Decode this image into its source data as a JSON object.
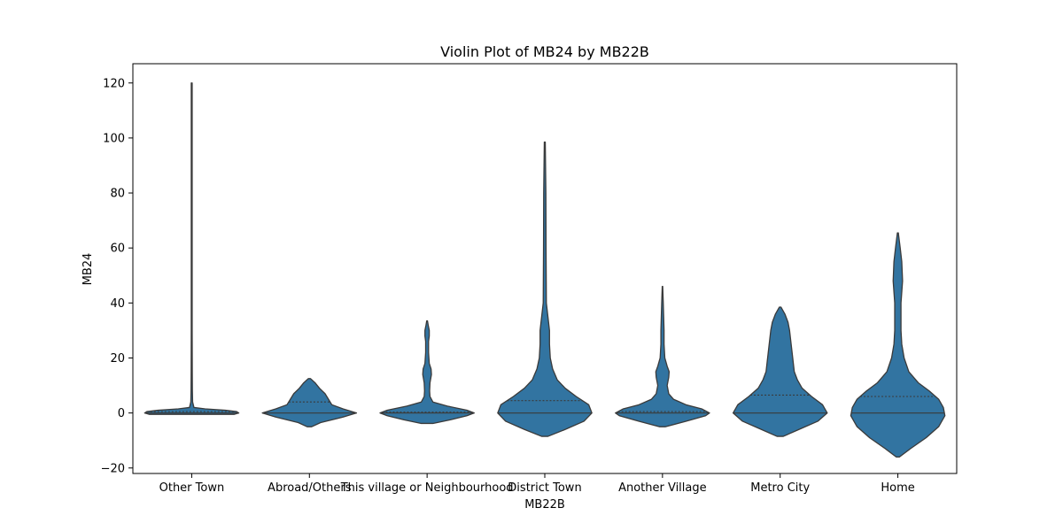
{
  "chart_data": {
    "type": "violin",
    "title": "Violin Plot of MB24 by MB22B",
    "xlabel": "MB22B",
    "ylabel": "MB24",
    "ylim": [
      -22,
      127
    ],
    "yticks": [
      -20,
      0,
      20,
      40,
      60,
      80,
      100,
      120
    ],
    "grid": false,
    "legend": "none",
    "violin_color": "#3274a1",
    "edge_color": "#3a3a3a",
    "categories": [
      "Other Town",
      "Abroad/Others",
      "This village or Neighbourhood",
      "District Town",
      "Another Village",
      "Metro City",
      "Home"
    ],
    "violins": [
      {
        "category": "Other Town",
        "min": -0.5,
        "max": 120,
        "median": 0,
        "q1": 0,
        "q3": 0.5,
        "profile": [
          [
            -0.5,
            0.38
          ],
          [
            0,
            0.42
          ],
          [
            0.5,
            0.4
          ],
          [
            1,
            0.3
          ],
          [
            1.5,
            0.12
          ],
          [
            2,
            0.02
          ],
          [
            4,
            0.008
          ],
          [
            8,
            0.006
          ],
          [
            15,
            0.005
          ],
          [
            30,
            0.004
          ],
          [
            60,
            0.004
          ],
          [
            120,
            0.004
          ]
        ]
      },
      {
        "category": "Abroad/Others",
        "min": -5,
        "max": 12.5,
        "median": 0,
        "q1": 0,
        "q3": 4,
        "profile": [
          [
            -5,
            0.02
          ],
          [
            -3.5,
            0.1
          ],
          [
            -1.5,
            0.3
          ],
          [
            0,
            0.42
          ],
          [
            1.5,
            0.3
          ],
          [
            3,
            0.2
          ],
          [
            5,
            0.17
          ],
          [
            7,
            0.14
          ],
          [
            9,
            0.09
          ],
          [
            11,
            0.05
          ],
          [
            12.5,
            0.01
          ]
        ]
      },
      {
        "category": "This village or Neighbourhood",
        "min": -3.8,
        "max": 33.5,
        "median": 0,
        "q1": 0,
        "q3": 0.3,
        "profile": [
          [
            -3.8,
            0.08
          ],
          [
            -2.5,
            0.32
          ],
          [
            -1,
            0.55
          ],
          [
            0,
            0.65
          ],
          [
            1,
            0.55
          ],
          [
            2.5,
            0.28
          ],
          [
            4,
            0.08
          ],
          [
            6,
            0.04
          ],
          [
            8,
            0.035
          ],
          [
            11,
            0.04
          ],
          [
            14,
            0.06
          ],
          [
            16,
            0.055
          ],
          [
            18,
            0.03
          ],
          [
            22,
            0.02
          ],
          [
            26,
            0.02
          ],
          [
            28,
            0.03
          ],
          [
            30,
            0.03
          ],
          [
            32,
            0.015
          ],
          [
            33.5,
            0.005
          ]
        ]
      },
      {
        "category": "District Town",
        "min": -8.5,
        "max": 98.5,
        "median": 0,
        "q1": 0,
        "q3": 4.5,
        "profile": [
          [
            -8.5,
            0.02
          ],
          [
            -6,
            0.13
          ],
          [
            -3,
            0.25
          ],
          [
            0,
            0.3
          ],
          [
            3,
            0.28
          ],
          [
            6,
            0.2
          ],
          [
            9,
            0.13
          ],
          [
            12,
            0.08
          ],
          [
            16,
            0.05
          ],
          [
            20,
            0.035
          ],
          [
            25,
            0.03
          ],
          [
            30,
            0.03
          ],
          [
            35,
            0.02
          ],
          [
            40,
            0.01
          ],
          [
            60,
            0.008
          ],
          [
            80,
            0.007
          ],
          [
            98.5,
            0.003
          ]
        ]
      },
      {
        "category": "Another Village",
        "min": -5,
        "max": 46,
        "median": 0,
        "q1": 0,
        "q3": 0.5,
        "profile": [
          [
            -5,
            0.04
          ],
          [
            -3,
            0.3
          ],
          [
            -1,
            0.55
          ],
          [
            0,
            0.6
          ],
          [
            1.5,
            0.5
          ],
          [
            3,
            0.3
          ],
          [
            5,
            0.14
          ],
          [
            7,
            0.08
          ],
          [
            10,
            0.06
          ],
          [
            13,
            0.08
          ],
          [
            15,
            0.085
          ],
          [
            17,
            0.06
          ],
          [
            20,
            0.03
          ],
          [
            25,
            0.02
          ],
          [
            30,
            0.02
          ],
          [
            35,
            0.015
          ],
          [
            40,
            0.01
          ],
          [
            46,
            0.003
          ]
        ]
      },
      {
        "category": "Metro City",
        "min": -8.5,
        "max": 38.5,
        "median": 0,
        "q1": 0,
        "q3": 6.5,
        "profile": [
          [
            -8.5,
            0.02
          ],
          [
            -6,
            0.12
          ],
          [
            -3,
            0.24
          ],
          [
            0,
            0.3
          ],
          [
            3,
            0.27
          ],
          [
            6,
            0.2
          ],
          [
            9,
            0.14
          ],
          [
            12,
            0.11
          ],
          [
            15,
            0.09
          ],
          [
            20,
            0.08
          ],
          [
            25,
            0.07
          ],
          [
            30,
            0.06
          ],
          [
            33,
            0.05
          ],
          [
            36,
            0.03
          ],
          [
            38.5,
            0.005
          ]
        ]
      },
      {
        "category": "Home",
        "min": -16,
        "max": 65.5,
        "median": 0,
        "q1": 0,
        "q3": 6,
        "profile": [
          [
            -16,
            0.01
          ],
          [
            -13,
            0.08
          ],
          [
            -9,
            0.18
          ],
          [
            -5,
            0.26
          ],
          [
            -1,
            0.3
          ],
          [
            2,
            0.29
          ],
          [
            5,
            0.26
          ],
          [
            8,
            0.2
          ],
          [
            11,
            0.13
          ],
          [
            15,
            0.07
          ],
          [
            20,
            0.04
          ],
          [
            25,
            0.025
          ],
          [
            30,
            0.02
          ],
          [
            40,
            0.02
          ],
          [
            48,
            0.03
          ],
          [
            55,
            0.025
          ],
          [
            60,
            0.015
          ],
          [
            65.5,
            0.003
          ]
        ]
      }
    ]
  }
}
